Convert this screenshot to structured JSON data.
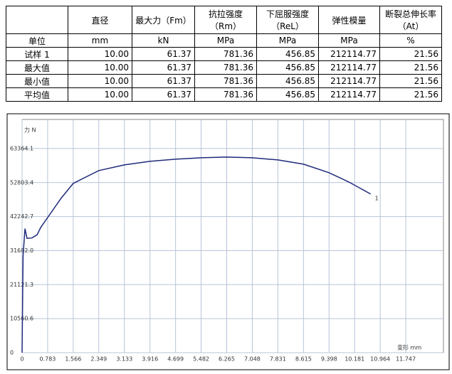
{
  "table": {
    "header": [
      "",
      "直径",
      "最大力（Fm）",
      "抗拉强度（Rm）",
      "下屈服强度（ReL）",
      "弹性模量",
      "断裂总伸长率（At）"
    ],
    "rows": [
      [
        "单位",
        "mm",
        "kN",
        "MPa",
        "MPa",
        "MPa",
        "%"
      ],
      [
        "试样 1",
        "10.00",
        "61.37",
        "781.36",
        "456.85",
        "212114.77",
        "21.56"
      ],
      [
        "最大值",
        "10.00",
        "61.37",
        "781.36",
        "456.85",
        "212114.77",
        "21.56"
      ],
      [
        "最小值",
        "10.00",
        "61.37",
        "781.36",
        "456.85",
        "212114.77",
        "21.56"
      ],
      [
        "平均值",
        "10.00",
        "61.37",
        "781.36",
        "456.85",
        "212114.77",
        "21.56"
      ]
    ]
  },
  "chart_data": {
    "type": "line",
    "y_label": "力 N",
    "x_label": "变形 mm",
    "curve_label": "1",
    "color": "#1f2a7a",
    "grid": true,
    "x": [
      0,
      0.03,
      0.09,
      0.15,
      0.3,
      0.46,
      0.57,
      0.783,
      1.2,
      1.566,
      2.349,
      3.133,
      3.916,
      4.699,
      5.482,
      6.265,
      7.048,
      7.831,
      8.615,
      9.398,
      10.0,
      10.67
    ],
    "values": [
      0,
      30000,
      38500,
      35500,
      35600,
      36600,
      38860,
      41950,
      48000,
      52550,
      56520,
      58290,
      59400,
      60060,
      60500,
      60720,
      60500,
      59840,
      58510,
      55860,
      53000,
      49240
    ],
    "xlim": [
      0,
      12.9
    ],
    "ylim": [
      0,
      72400
    ],
    "xticks": [
      0,
      0.783,
      1.566,
      2.349,
      3.133,
      3.916,
      4.699,
      5.482,
      6.265,
      7.048,
      7.831,
      8.615,
      9.398,
      10.181,
      10.964,
      11.747
    ],
    "yticks": [
      0,
      10560.6,
      21121.3,
      {
        "value": 31682,
        "label": "31682.0"
      },
      42242.7,
      52803.4,
      63364.1
    ]
  }
}
